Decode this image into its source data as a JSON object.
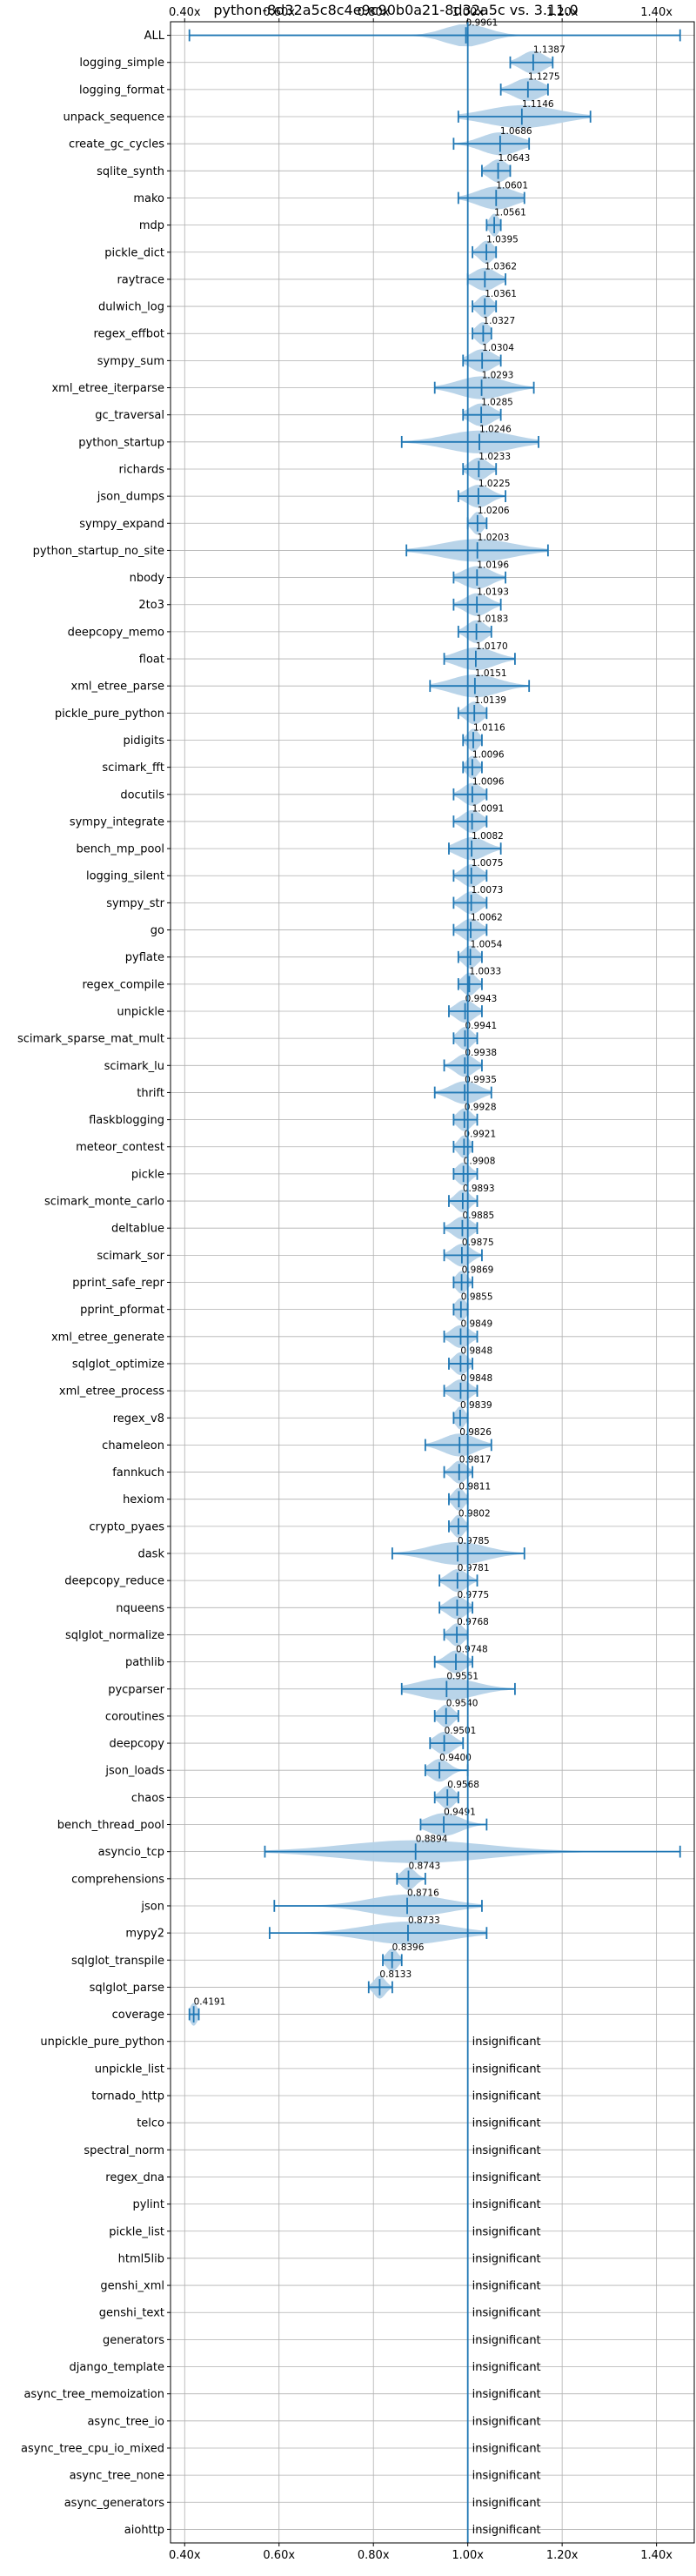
{
  "chart_data": {
    "type": "violin",
    "title": "python-8d32a5c8c4e9c90b0a21-8d32a5c vs. 3.11.0",
    "xlim": [
      0.37,
      1.48
    ],
    "xticks": [
      0.4,
      0.6,
      0.8,
      1.0,
      1.2,
      1.4
    ],
    "xtick_labels": [
      "0.40x",
      "0.60x",
      "0.80x",
      "1.00x",
      "1.20x",
      "1.40x"
    ],
    "reference_line": 1.0,
    "grid": true,
    "insignificant_label": "insignificant",
    "colors": {
      "line": "#1f77b4",
      "fill": "#b5d2e8",
      "grid": "#b0b0b0"
    },
    "benchmarks": [
      {
        "name": "ALL",
        "mean": 0.9961,
        "label": "0.9961",
        "min": 0.41,
        "max": 1.45,
        "spread": 0.045
      },
      {
        "name": "logging_simple",
        "mean": 1.1387,
        "label": "1.1387",
        "min": 1.09,
        "max": 1.18,
        "spread": 0.025
      },
      {
        "name": "logging_format",
        "mean": 1.1275,
        "label": "1.1275",
        "min": 1.07,
        "max": 1.17,
        "spread": 0.03
      },
      {
        "name": "unpack_sequence",
        "mean": 1.1146,
        "label": "1.1146",
        "min": 0.98,
        "max": 1.26,
        "spread": 0.075
      },
      {
        "name": "create_gc_cycles",
        "mean": 1.0686,
        "label": "1.0686",
        "min": 0.97,
        "max": 1.13,
        "spread": 0.04
      },
      {
        "name": "sqlite_synth",
        "mean": 1.0643,
        "label": "1.0643",
        "min": 1.03,
        "max": 1.09,
        "spread": 0.02
      },
      {
        "name": "mako",
        "mean": 1.0601,
        "label": "1.0601",
        "min": 0.98,
        "max": 1.12,
        "spread": 0.04
      },
      {
        "name": "mdp",
        "mean": 1.0561,
        "label": "1.0561",
        "min": 1.04,
        "max": 1.07,
        "spread": 0.01
      },
      {
        "name": "pickle_dict",
        "mean": 1.0395,
        "label": "1.0395",
        "min": 1.01,
        "max": 1.06,
        "spread": 0.015
      },
      {
        "name": "raytrace",
        "mean": 1.0362,
        "label": "1.0362",
        "min": 1.0,
        "max": 1.08,
        "spread": 0.025
      },
      {
        "name": "dulwich_log",
        "mean": 1.0361,
        "label": "1.0361",
        "min": 1.01,
        "max": 1.06,
        "spread": 0.015
      },
      {
        "name": "regex_effbot",
        "mean": 1.0327,
        "label": "1.0327",
        "min": 1.01,
        "max": 1.05,
        "spread": 0.015
      },
      {
        "name": "sympy_sum",
        "mean": 1.0304,
        "label": "1.0304",
        "min": 0.99,
        "max": 1.07,
        "spread": 0.025
      },
      {
        "name": "xml_etree_iterparse",
        "mean": 1.0293,
        "label": "1.0293",
        "min": 0.93,
        "max": 1.14,
        "spread": 0.05
      },
      {
        "name": "gc_traversal",
        "mean": 1.0285,
        "label": "1.0285",
        "min": 0.99,
        "max": 1.07,
        "spread": 0.025
      },
      {
        "name": "python_startup",
        "mean": 1.0246,
        "label": "1.0246",
        "min": 0.86,
        "max": 1.15,
        "spread": 0.07
      },
      {
        "name": "richards",
        "mean": 1.0233,
        "label": "1.0233",
        "min": 0.99,
        "max": 1.06,
        "spread": 0.02
      },
      {
        "name": "json_dumps",
        "mean": 1.0225,
        "label": "1.0225",
        "min": 0.98,
        "max": 1.08,
        "spread": 0.025
      },
      {
        "name": "sympy_expand",
        "mean": 1.0206,
        "label": "1.0206",
        "min": 1.0,
        "max": 1.04,
        "spread": 0.012
      },
      {
        "name": "python_startup_no_site",
        "mean": 1.0203,
        "label": "1.0203",
        "min": 0.87,
        "max": 1.17,
        "spread": 0.075
      },
      {
        "name": "nbody",
        "mean": 1.0196,
        "label": "1.0196",
        "min": 0.97,
        "max": 1.08,
        "spread": 0.03
      },
      {
        "name": "2to3",
        "mean": 1.0193,
        "label": "1.0193",
        "min": 0.97,
        "max": 1.07,
        "spread": 0.025
      },
      {
        "name": "deepcopy_memo",
        "mean": 1.0183,
        "label": "1.0183",
        "min": 0.98,
        "max": 1.05,
        "spread": 0.02
      },
      {
        "name": "float",
        "mean": 1.017,
        "label": "1.0170",
        "min": 0.95,
        "max": 1.1,
        "spread": 0.04
      },
      {
        "name": "xml_etree_parse",
        "mean": 1.0151,
        "label": "1.0151",
        "min": 0.92,
        "max": 1.13,
        "spread": 0.05
      },
      {
        "name": "pickle_pure_python",
        "mean": 1.0139,
        "label": "1.0139",
        "min": 0.98,
        "max": 1.04,
        "spread": 0.018
      },
      {
        "name": "pidigits",
        "mean": 1.0116,
        "label": "1.0116",
        "min": 0.99,
        "max": 1.03,
        "spread": 0.012
      },
      {
        "name": "scimark_fft",
        "mean": 1.0096,
        "label": "1.0096",
        "min": 0.99,
        "max": 1.03,
        "spread": 0.012
      },
      {
        "name": "docutils",
        "mean": 1.0096,
        "label": "1.0096",
        "min": 0.97,
        "max": 1.04,
        "spread": 0.02
      },
      {
        "name": "sympy_integrate",
        "mean": 1.0091,
        "label": "1.0091",
        "min": 0.97,
        "max": 1.04,
        "spread": 0.02
      },
      {
        "name": "bench_mp_pool",
        "mean": 1.0082,
        "label": "1.0082",
        "min": 0.96,
        "max": 1.07,
        "spread": 0.03
      },
      {
        "name": "logging_silent",
        "mean": 1.0075,
        "label": "1.0075",
        "min": 0.97,
        "max": 1.04,
        "spread": 0.02
      },
      {
        "name": "sympy_str",
        "mean": 1.0073,
        "label": "1.0073",
        "min": 0.97,
        "max": 1.04,
        "spread": 0.02
      },
      {
        "name": "go",
        "mean": 1.0062,
        "label": "1.0062",
        "min": 0.97,
        "max": 1.04,
        "spread": 0.02
      },
      {
        "name": "pyflate",
        "mean": 1.0054,
        "label": "1.0054",
        "min": 0.98,
        "max": 1.03,
        "spread": 0.015
      },
      {
        "name": "regex_compile",
        "mean": 1.0033,
        "label": "1.0033",
        "min": 0.98,
        "max": 1.03,
        "spread": 0.015
      },
      {
        "name": "unpickle",
        "mean": 0.9943,
        "label": "0.9943",
        "min": 0.96,
        "max": 1.03,
        "spread": 0.02
      },
      {
        "name": "scimark_sparse_mat_mult",
        "mean": 0.9941,
        "label": "0.9941",
        "min": 0.97,
        "max": 1.02,
        "spread": 0.015
      },
      {
        "name": "scimark_lu",
        "mean": 0.9938,
        "label": "0.9938",
        "min": 0.95,
        "max": 1.03,
        "spread": 0.02
      },
      {
        "name": "thrift",
        "mean": 0.9935,
        "label": "0.9935",
        "min": 0.93,
        "max": 1.05,
        "spread": 0.03
      },
      {
        "name": "flaskblogging",
        "mean": 0.9928,
        "label": "0.9928",
        "min": 0.97,
        "max": 1.02,
        "spread": 0.015
      },
      {
        "name": "meteor_contest",
        "mean": 0.9921,
        "label": "0.9921",
        "min": 0.97,
        "max": 1.01,
        "spread": 0.012
      },
      {
        "name": "pickle",
        "mean": 0.9908,
        "label": "0.9908",
        "min": 0.97,
        "max": 1.02,
        "spread": 0.015
      },
      {
        "name": "scimark_monte_carlo",
        "mean": 0.9893,
        "label": "0.9893",
        "min": 0.96,
        "max": 1.02,
        "spread": 0.015
      },
      {
        "name": "deltablue",
        "mean": 0.9885,
        "label": "0.9885",
        "min": 0.95,
        "max": 1.02,
        "spread": 0.02
      },
      {
        "name": "scimark_sor",
        "mean": 0.9875,
        "label": "0.9875",
        "min": 0.95,
        "max": 1.03,
        "spread": 0.02
      },
      {
        "name": "pprint_safe_repr",
        "mean": 0.9869,
        "label": "0.9869",
        "min": 0.97,
        "max": 1.01,
        "spread": 0.012
      },
      {
        "name": "pprint_pformat",
        "mean": 0.9855,
        "label": "0.9855",
        "min": 0.97,
        "max": 1.0,
        "spread": 0.012
      },
      {
        "name": "xml_etree_generate",
        "mean": 0.9849,
        "label": "0.9849",
        "min": 0.95,
        "max": 1.02,
        "spread": 0.02
      },
      {
        "name": "sqlglot_optimize",
        "mean": 0.9848,
        "label": "0.9848",
        "min": 0.96,
        "max": 1.01,
        "spread": 0.015
      },
      {
        "name": "xml_etree_process",
        "mean": 0.9848,
        "label": "0.9848",
        "min": 0.95,
        "max": 1.02,
        "spread": 0.02
      },
      {
        "name": "regex_v8",
        "mean": 0.9839,
        "label": "0.9839",
        "min": 0.97,
        "max": 1.0,
        "spread": 0.01
      },
      {
        "name": "chameleon",
        "mean": 0.9826,
        "label": "0.9826",
        "min": 0.91,
        "max": 1.05,
        "spread": 0.035
      },
      {
        "name": "fannkuch",
        "mean": 0.9817,
        "label": "0.9817",
        "min": 0.95,
        "max": 1.01,
        "spread": 0.015
      },
      {
        "name": "hexiom",
        "mean": 0.9811,
        "label": "0.9811",
        "min": 0.96,
        "max": 1.0,
        "spread": 0.012
      },
      {
        "name": "crypto_pyaes",
        "mean": 0.9802,
        "label": "0.9802",
        "min": 0.96,
        "max": 1.0,
        "spread": 0.012
      },
      {
        "name": "dask",
        "mean": 0.9785,
        "label": "0.9785",
        "min": 0.84,
        "max": 1.12,
        "spread": 0.06
      },
      {
        "name": "deepcopy_reduce",
        "mean": 0.9781,
        "label": "0.9781",
        "min": 0.94,
        "max": 1.02,
        "spread": 0.02
      },
      {
        "name": "nqueens",
        "mean": 0.9775,
        "label": "0.9775",
        "min": 0.94,
        "max": 1.01,
        "spread": 0.02
      },
      {
        "name": "sqlglot_normalize",
        "mean": 0.9768,
        "label": "0.9768",
        "min": 0.95,
        "max": 1.0,
        "spread": 0.015
      },
      {
        "name": "pathlib",
        "mean": 0.9748,
        "label": "0.9748",
        "min": 0.93,
        "max": 1.01,
        "spread": 0.02
      },
      {
        "name": "pycparser",
        "mean": 0.9551,
        "label": "0.9551",
        "min": 0.86,
        "max": 1.1,
        "spread": 0.06
      },
      {
        "name": "coroutines",
        "mean": 0.954,
        "label": "0.9540",
        "min": 0.93,
        "max": 0.98,
        "spread": 0.015
      },
      {
        "name": "deepcopy",
        "mean": 0.9501,
        "label": "0.9501",
        "min": 0.92,
        "max": 0.99,
        "spread": 0.02
      },
      {
        "name": "json_loads",
        "mean": 0.94,
        "label": "0.9400",
        "min": 0.91,
        "max": 1.0,
        "spread": 0.02
      },
      {
        "name": "chaos",
        "mean": 0.9568,
        "label": "0.9568",
        "min": 0.93,
        "max": 0.98,
        "spread": 0.015
      },
      {
        "name": "bench_thread_pool",
        "mean": 0.9491,
        "label": "0.9491",
        "min": 0.9,
        "max": 1.04,
        "spread": 0.035
      },
      {
        "name": "asyncio_tcp",
        "mean": 0.8894,
        "label": "0.8894",
        "min": 0.57,
        "max": 1.45,
        "spread": 0.15
      },
      {
        "name": "comprehensions",
        "mean": 0.8743,
        "label": "0.8743",
        "min": 0.85,
        "max": 0.91,
        "spread": 0.015
      },
      {
        "name": "json",
        "mean": 0.8716,
        "label": "0.8716",
        "min": 0.59,
        "max": 1.03,
        "spread": 0.08
      },
      {
        "name": "mypy2",
        "mean": 0.8733,
        "label": "0.8733",
        "min": 0.58,
        "max": 1.04,
        "spread": 0.09
      },
      {
        "name": "sqlglot_transpile",
        "mean": 0.8396,
        "label": "0.8396",
        "min": 0.82,
        "max": 0.86,
        "spread": 0.012
      },
      {
        "name": "sqlglot_parse",
        "mean": 0.8133,
        "label": "0.8133",
        "min": 0.79,
        "max": 0.84,
        "spread": 0.012
      },
      {
        "name": "coverage",
        "mean": 0.4191,
        "label": "0.4191",
        "min": 0.41,
        "max": 0.43,
        "spread": 0.008
      },
      {
        "name": "unpickle_pure_python",
        "insignificant": true
      },
      {
        "name": "unpickle_list",
        "insignificant": true
      },
      {
        "name": "tornado_http",
        "insignificant": true
      },
      {
        "name": "telco",
        "insignificant": true
      },
      {
        "name": "spectral_norm",
        "insignificant": true
      },
      {
        "name": "regex_dna",
        "insignificant": true
      },
      {
        "name": "pylint",
        "insignificant": true
      },
      {
        "name": "pickle_list",
        "insignificant": true
      },
      {
        "name": "html5lib",
        "insignificant": true
      },
      {
        "name": "genshi_xml",
        "insignificant": true
      },
      {
        "name": "genshi_text",
        "insignificant": true
      },
      {
        "name": "generators",
        "insignificant": true
      },
      {
        "name": "django_template",
        "insignificant": true
      },
      {
        "name": "async_tree_memoization",
        "insignificant": true
      },
      {
        "name": "async_tree_io",
        "insignificant": true
      },
      {
        "name": "async_tree_cpu_io_mixed",
        "insignificant": true
      },
      {
        "name": "async_tree_none",
        "insignificant": true
      },
      {
        "name": "async_generators",
        "insignificant": true
      },
      {
        "name": "aiohttp",
        "insignificant": true
      }
    ]
  }
}
